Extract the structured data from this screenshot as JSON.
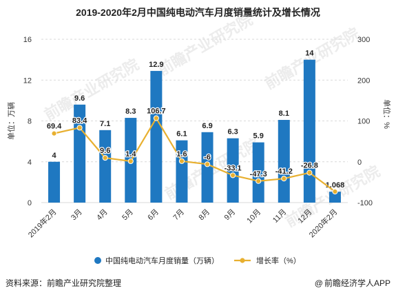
{
  "title": "2019-2020年2月中国纯电动汽车月度销量统计及增长情况",
  "source_text": "资料来源：前瞻产业研究院整理",
  "brand_text": "前瞻经济学人APP",
  "brand_symbol": "@",
  "watermark_text": "前瞻产业研究院",
  "colors": {
    "bar": "#1f78c1",
    "line": "#e8b030",
    "axis_text": "#333333",
    "grid": "#d9d9d9"
  },
  "chart_data": {
    "type": "bar",
    "categories": [
      "2019年2月",
      "3月",
      "4月",
      "5月",
      "6月",
      "7月",
      "8月",
      "9月",
      "10月",
      "11月",
      "12月",
      "2020年2月"
    ],
    "series": [
      {
        "name": "中国纯电动汽车月度销量（万辆）",
        "type": "bar",
        "axis": "left",
        "values": [
          4,
          9.6,
          7.1,
          8.3,
          12.9,
          6.1,
          6.9,
          6.3,
          5.9,
          8.1,
          14,
          1.068
        ],
        "labels": [
          "4",
          "9.6",
          "7.1",
          "8.3",
          "12.9",
          "6.1",
          "6.9",
          "6.3",
          "5.9",
          "8.1",
          "14",
          "1.068"
        ]
      },
      {
        "name": "增长率（%）",
        "type": "line",
        "axis": "right",
        "values": [
          69.4,
          83.4,
          9.6,
          1.4,
          106.7,
          1.6,
          -6,
          -33.1,
          -47.3,
          -41.2,
          -26.8,
          -73
        ],
        "labels": [
          "69.4",
          "83.4",
          "9.6",
          "1.4",
          "106.7",
          "1.6",
          "-6",
          "-33.1",
          "-47.3",
          "-41.2",
          "-26.8",
          ""
        ]
      }
    ],
    "y_left": {
      "label": "单位：万辆",
      "ylim": [
        0,
        16
      ],
      "ticks": [
        "0",
        "4",
        "8",
        "12",
        "16"
      ]
    },
    "y_right": {
      "label": "单位：%",
      "ylim": [
        -100,
        300
      ],
      "ticks": [
        "-100",
        "0",
        "100",
        "200",
        "300"
      ]
    },
    "grid": true,
    "legend_position": "bottom"
  }
}
